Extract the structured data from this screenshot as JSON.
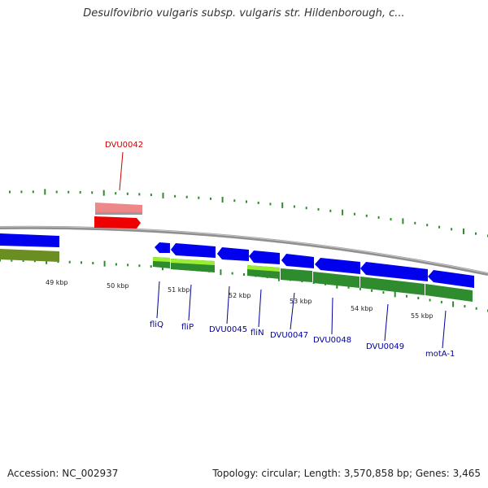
{
  "title": "Desulfovibrio vulgaris subsp. vulgaris str. Hildenborough, c...",
  "footer": {
    "accession": "Accession: NC_002937",
    "topology": "Topology: circular; Length: 3,570,858 bp; Genes: 3,465"
  },
  "scale_labels": [
    "49 kbp",
    "50 kbp",
    "51 kbp",
    "52 kbp",
    "53 kbp",
    "54 kbp",
    "55 kbp"
  ],
  "gene_labels": [
    {
      "text": "DVU0042",
      "color": "#cc0000",
      "highlighted": true
    },
    {
      "text": "fliQ",
      "color": "#000099"
    },
    {
      "text": "fliP",
      "color": "#000099"
    },
    {
      "text": "DVU0045",
      "color": "#000099"
    },
    {
      "text": "fliN",
      "color": "#000099"
    },
    {
      "text": "DVU0047",
      "color": "#000099"
    },
    {
      "text": "DVU0048",
      "color": "#000099"
    },
    {
      "text": "DVU0049",
      "color": "#000099"
    },
    {
      "text": "motA-1",
      "color": "#000099"
    }
  ],
  "colors": {
    "cds": "#0000ee",
    "cds_highlight": "#ee0000",
    "cds_highlight_faded": "#ee8888",
    "cog_green": "#2e8b2e",
    "cog_lime": "#99ee33",
    "cog_olive": "#6b8e23",
    "backbone": "#888888",
    "ticks": "#2e8b2e"
  }
}
